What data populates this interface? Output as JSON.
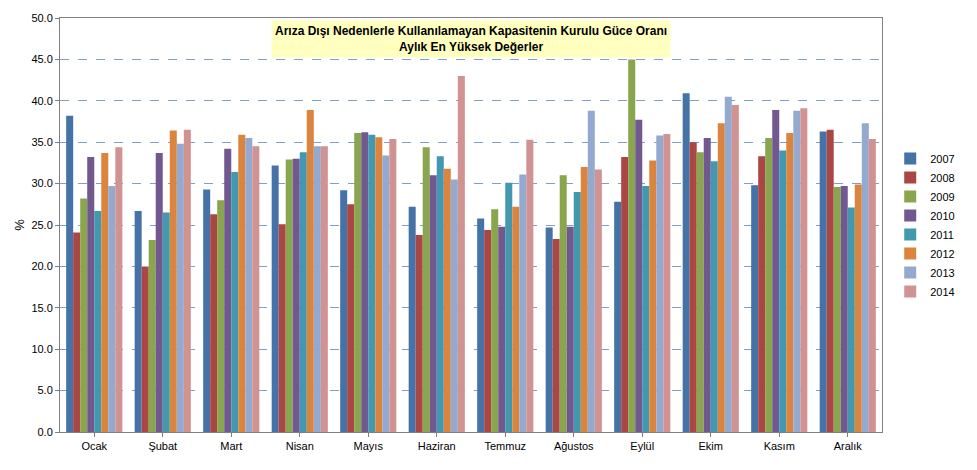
{
  "chart_data": {
    "type": "bar",
    "title": "Arıza Dışı Nedenlerle Kullanılamayan Kapasitenin Kurulu Güce Oranı",
    "subtitle": "Aylık En Yüksek Değerler",
    "y_label": "%",
    "categories": [
      "Ocak",
      "Şubat",
      "Mart",
      "Nisan",
      "Mayıs",
      "Haziran",
      "Temmuz",
      "Ağustos",
      "Eylül",
      "Ekim",
      "Kasım",
      "Aralık"
    ],
    "series": [
      {
        "name": "2007",
        "color": "#4572A7",
        "values": [
          38.2,
          26.7,
          29.3,
          32.2,
          29.2,
          27.2,
          25.8,
          24.7,
          27.8,
          40.9,
          29.8,
          36.3
        ]
      },
      {
        "name": "2008",
        "color": "#AA4643",
        "values": [
          24.1,
          20.0,
          26.3,
          25.1,
          27.5,
          23.8,
          24.4,
          23.3,
          33.2,
          35.0,
          33.3,
          36.5
        ]
      },
      {
        "name": "2009",
        "color": "#89A54E",
        "values": [
          28.2,
          23.2,
          28.0,
          32.9,
          36.1,
          34.4,
          26.9,
          31.0,
          45.0,
          33.8,
          35.5,
          29.6
        ]
      },
      {
        "name": "2010",
        "color": "#71588F",
        "values": [
          33.2,
          33.7,
          34.2,
          33.0,
          36.2,
          31.0,
          24.8,
          24.8,
          37.7,
          35.5,
          38.9,
          29.7
        ]
      },
      {
        "name": "2011",
        "color": "#4198AF",
        "values": [
          26.7,
          26.5,
          31.4,
          33.8,
          35.9,
          33.3,
          30.1,
          29.0,
          29.7,
          32.7,
          34.0,
          27.1
        ]
      },
      {
        "name": "2012",
        "color": "#DB843D",
        "values": [
          33.7,
          36.4,
          35.9,
          38.9,
          35.6,
          31.8,
          27.2,
          32.0,
          32.8,
          37.3,
          36.1,
          29.9
        ]
      },
      {
        "name": "2013",
        "color": "#93A9CF",
        "values": [
          29.7,
          34.8,
          35.5,
          34.5,
          33.4,
          30.5,
          31.1,
          38.8,
          35.8,
          40.5,
          38.8,
          37.3
        ]
      },
      {
        "name": "2014",
        "color": "#D19392",
        "values": [
          34.4,
          36.5,
          34.5,
          34.5,
          35.4,
          43.0,
          35.3,
          31.7,
          36.0,
          39.5,
          39.1,
          35.4
        ]
      }
    ],
    "ylim": [
      0,
      50
    ],
    "yticks": [
      {
        "value": 0,
        "label": "0.0"
      },
      {
        "value": 5,
        "label": "5.0"
      },
      {
        "value": 10,
        "label": "10.0"
      },
      {
        "value": 15,
        "label": "15.0"
      },
      {
        "value": 20,
        "label": "20.0"
      },
      {
        "value": 25,
        "label": "25.0"
      },
      {
        "value": 30,
        "label": "30.0"
      },
      {
        "value": 35,
        "label": "35.0"
      },
      {
        "value": 40,
        "label": "40.0"
      },
      {
        "value": 45,
        "label": "45.0"
      },
      {
        "value": 50,
        "label": "50.0"
      }
    ],
    "grid": true,
    "legend": "right"
  }
}
